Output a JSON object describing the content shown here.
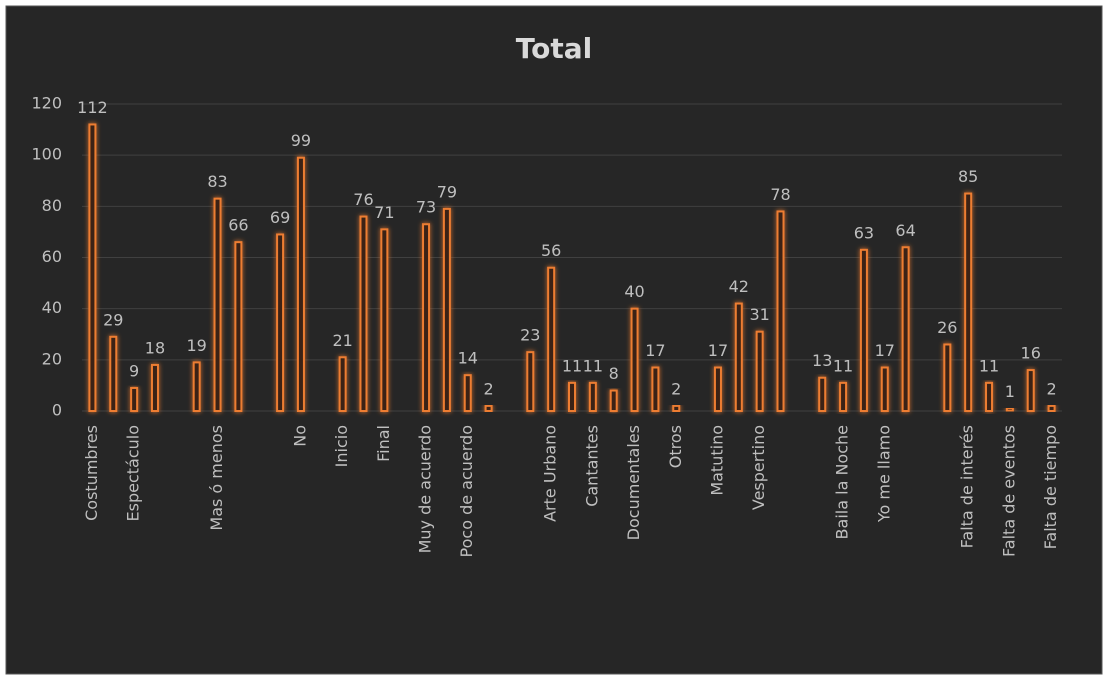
{
  "chart_data": {
    "type": "bar",
    "title": "Total",
    "categories": [
      "Costumbres",
      null,
      "Espectáculo",
      null,
      null,
      null,
      "Mas ó menos",
      null,
      null,
      null,
      "No",
      null,
      "Inicio",
      null,
      "Final",
      null,
      "Muy de acuerdo",
      null,
      "Poco de acuerdo",
      null,
      null,
      null,
      "Arte Urbano",
      null,
      "Cantantes",
      null,
      "Documentales",
      null,
      "Otros",
      null,
      "Matutino",
      null,
      "Vespertino",
      null,
      null,
      null,
      "Baila la Noche",
      null,
      "Yo me llamo",
      null,
      null,
      null,
      "Falta de interés",
      null,
      "Falta de eventos",
      null,
      "Falta de tiempo"
    ],
    "values": [
      112,
      29,
      9,
      18,
      null,
      19,
      83,
      66,
      null,
      69,
      99,
      null,
      21,
      76,
      71,
      null,
      73,
      79,
      14,
      2,
      null,
      23,
      56,
      11,
      11,
      8,
      40,
      17,
      2,
      null,
      17,
      42,
      31,
      78,
      null,
      13,
      11,
      63,
      17,
      64,
      null,
      26,
      85,
      11,
      1,
      16,
      2
    ],
    "color": "#ed7d31",
    "ylim": [
      0,
      120
    ],
    "yticks": [
      0,
      20,
      40,
      60,
      80,
      100,
      120
    ],
    "grid": true
  }
}
